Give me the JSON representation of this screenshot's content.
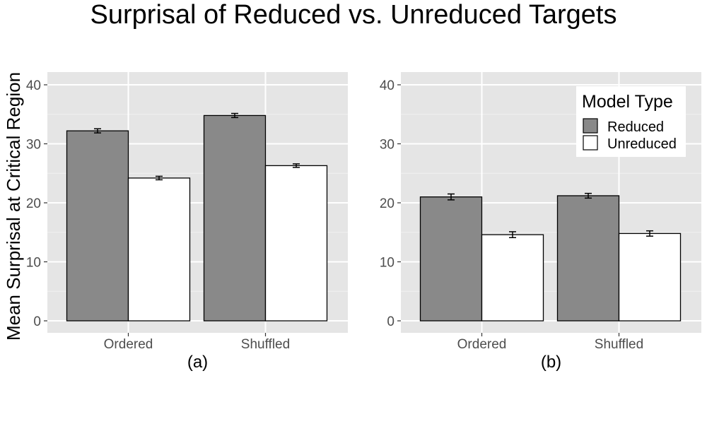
{
  "chart_data": {
    "type": "bar",
    "title": "Surprisal of Reduced vs. Unreduced Targets",
    "ylabel": "Mean Surprisal at Critical Region",
    "ylim": [
      0,
      42
    ],
    "yticks": [
      0,
      10,
      20,
      30,
      40
    ],
    "grid": true,
    "legend": {
      "title": "Model Type",
      "position": "top-right",
      "panel": 1,
      "entries": [
        {
          "name": "Reduced",
          "color": "#898989"
        },
        {
          "name": "Unreduced",
          "color": "#ffffff"
        }
      ]
    },
    "panels": [
      {
        "label": "(a)",
        "categories": [
          "Ordered",
          "Shuffled"
        ],
        "series": [
          {
            "name": "Reduced",
            "color": "#898989",
            "values": [
              32.2,
              34.8
            ],
            "errors": [
              0.35,
              0.35
            ]
          },
          {
            "name": "Unreduced",
            "color": "#ffffff",
            "values": [
              24.2,
              26.3
            ],
            "errors": [
              0.3,
              0.3
            ]
          }
        ]
      },
      {
        "label": "(b)",
        "categories": [
          "Ordered",
          "Shuffled"
        ],
        "series": [
          {
            "name": "Reduced",
            "color": "#898989",
            "values": [
              21.0,
              21.2
            ],
            "errors": [
              0.5,
              0.4
            ]
          },
          {
            "name": "Unreduced",
            "color": "#ffffff",
            "values": [
              14.6,
              14.8
            ],
            "errors": [
              0.5,
              0.45
            ]
          }
        ]
      }
    ]
  }
}
